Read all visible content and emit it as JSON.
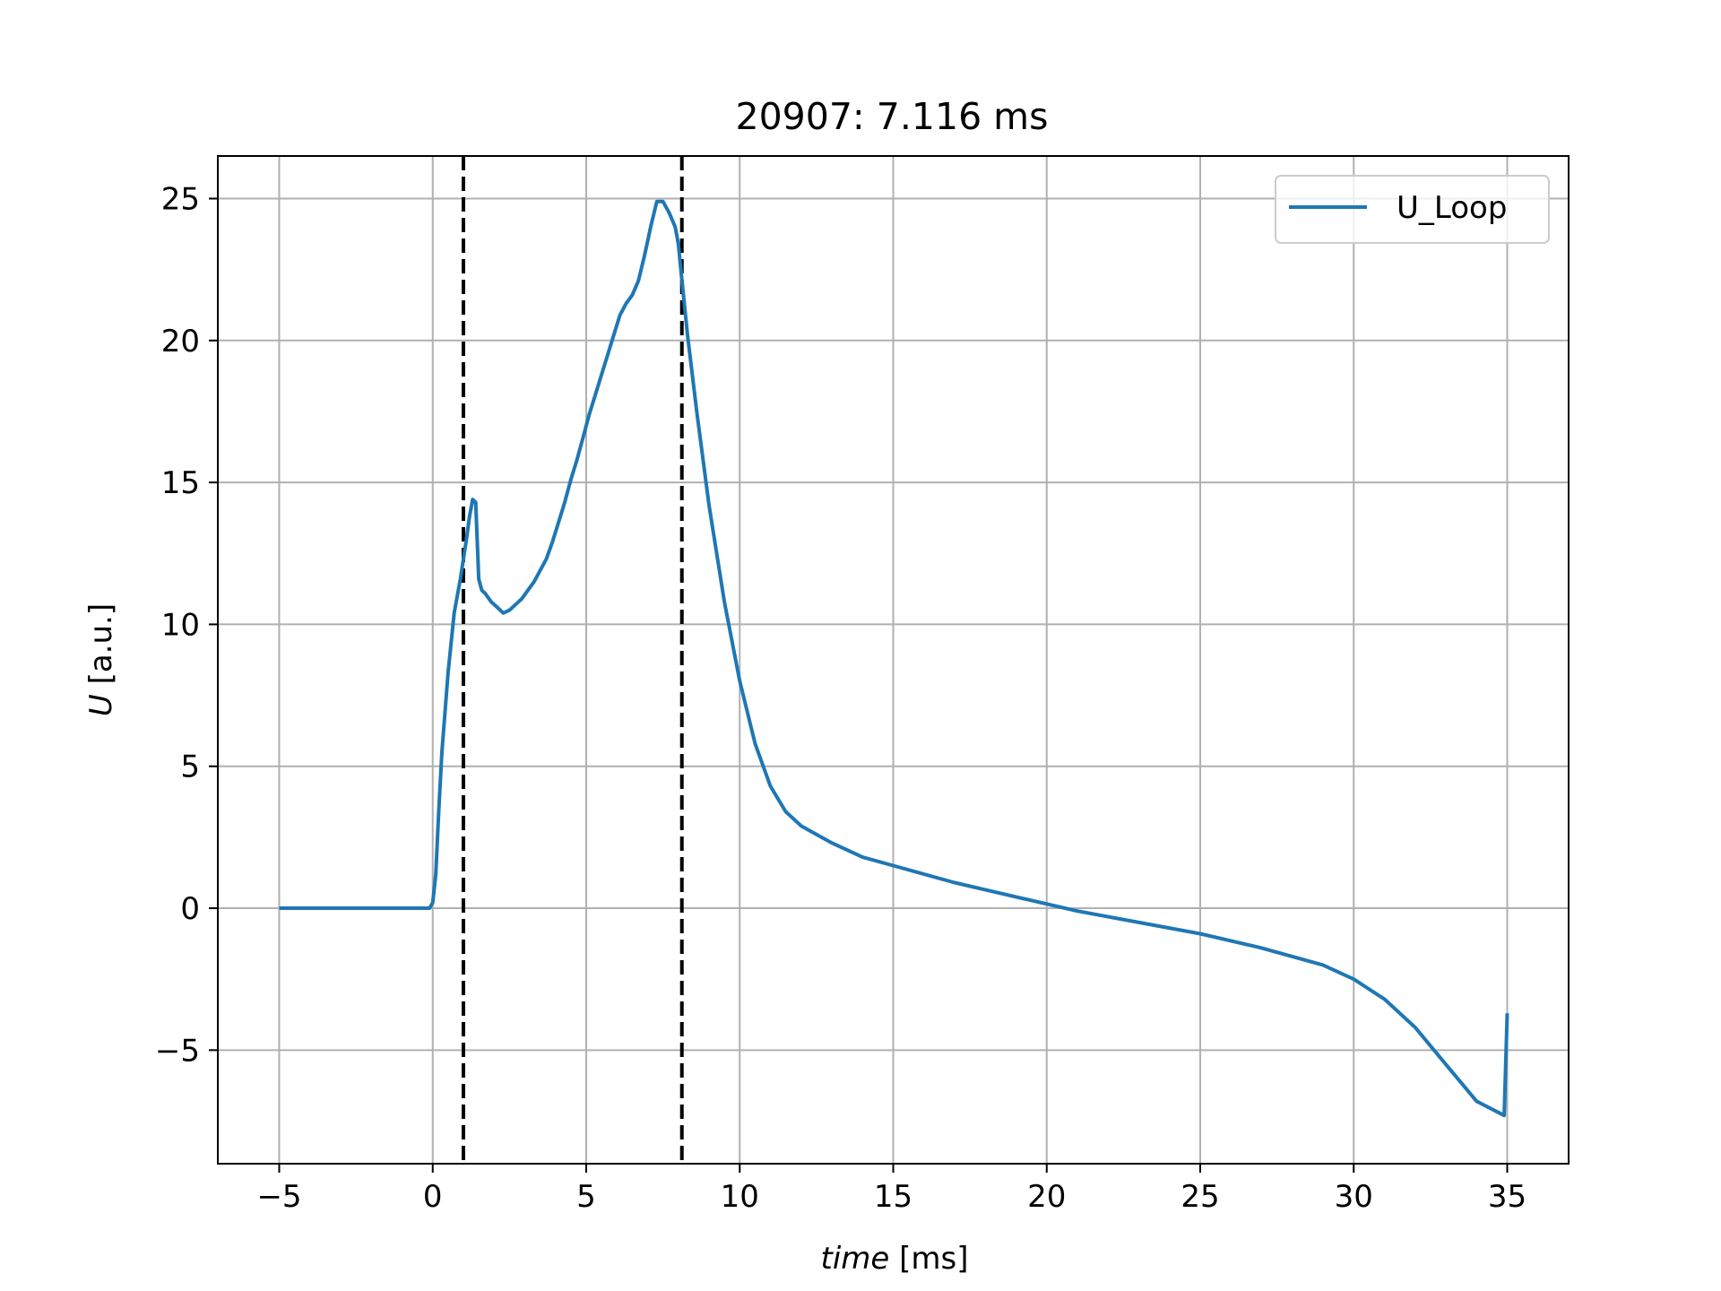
{
  "chart_data": {
    "type": "line",
    "title": "20907: 7.116 ms",
    "xlabel": {
      "italic": "time",
      "rest": " [ms]"
    },
    "ylabel": {
      "italic": "U",
      "rest": " [a.u.]"
    },
    "xlim": [
      -7,
      37
    ],
    "ylim": [
      -9,
      26.5
    ],
    "xticks": [
      -5,
      0,
      5,
      10,
      15,
      20,
      25,
      30,
      35
    ],
    "xtick_labels": [
      "−5",
      "0",
      "5",
      "10",
      "15",
      "20",
      "25",
      "30",
      "35"
    ],
    "yticks": [
      -5,
      0,
      5,
      10,
      15,
      20,
      25
    ],
    "ytick_labels": [
      "−5",
      "0",
      "5",
      "10",
      "15",
      "20",
      "25"
    ],
    "grid": true,
    "legend_position": "top-right",
    "vlines": [
      {
        "x": 1.0,
        "style": "dashed",
        "color": "#000000"
      },
      {
        "x": 8.116,
        "style": "dashed",
        "color": "#000000"
      }
    ],
    "series": [
      {
        "name": "U_Loop",
        "color": "#1f77b4",
        "x": [
          -5,
          -3,
          -1,
          -0.1,
          0,
          0.1,
          0.2,
          0.3,
          0.5,
          0.7,
          0.9,
          1.0,
          1.1,
          1.2,
          1.3,
          1.4,
          1.5,
          1.6,
          1.7,
          1.9,
          2.1,
          2.3,
          2.5,
          2.7,
          2.9,
          3.1,
          3.3,
          3.5,
          3.7,
          3.9,
          4.1,
          4.3,
          4.5,
          4.7,
          4.9,
          5.1,
          5.3,
          5.5,
          5.7,
          5.9,
          6.1,
          6.3,
          6.5,
          6.7,
          6.9,
          7.1,
          7.3,
          7.5,
          7.7,
          7.9,
          8.0,
          8.1,
          8.3,
          8.6,
          9.0,
          9.5,
          10.0,
          10.5,
          11.0,
          11.5,
          12.0,
          13.0,
          14.0,
          15.0,
          17.0,
          19.0,
          21.0,
          23.0,
          25.0,
          27.0,
          29.0,
          30.0,
          31.0,
          32.0,
          33.0,
          34.0,
          34.9,
          35.0
        ],
        "y": [
          0,
          0,
          0,
          0,
          0.2,
          1.2,
          3.5,
          5.5,
          8.3,
          10.4,
          11.6,
          12.3,
          13.0,
          13.8,
          14.4,
          14.3,
          11.6,
          11.2,
          11.1,
          10.8,
          10.6,
          10.4,
          10.5,
          10.7,
          10.9,
          11.2,
          11.5,
          11.9,
          12.3,
          12.9,
          13.6,
          14.3,
          15.1,
          15.8,
          16.6,
          17.4,
          18.1,
          18.8,
          19.5,
          20.2,
          20.9,
          21.3,
          21.6,
          22.1,
          23.0,
          24.0,
          24.9,
          24.9,
          24.5,
          24.0,
          23.4,
          22.3,
          20.2,
          17.5,
          14.2,
          10.8,
          8.0,
          5.8,
          4.3,
          3.4,
          2.9,
          2.3,
          1.8,
          1.5,
          0.9,
          0.4,
          -0.1,
          -0.5,
          -0.9,
          -1.4,
          -2.0,
          -2.5,
          -3.2,
          -4.2,
          -5.5,
          -6.8,
          -7.3,
          -3.7
        ]
      }
    ]
  }
}
